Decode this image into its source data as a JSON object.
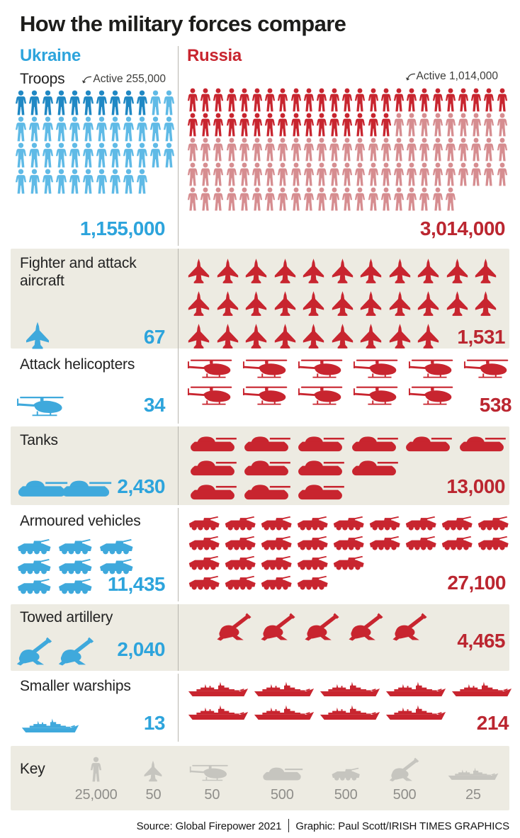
{
  "title": "How the military forces compare",
  "columns": {
    "ukraine": {
      "label": "Ukraine"
    },
    "russia": {
      "label": "Russia"
    }
  },
  "colors": {
    "tx": "#1d1d1b",
    "uk": "#2da4dc",
    "uki": "#3fa9dc",
    "ukd": "#1f88c4",
    "ukl": "#5fbae6",
    "ru": "#c8252f",
    "rui": "#c8252f",
    "ruv": "#bb2630",
    "rul": "#d68d90",
    "beige": "#edebe2",
    "keyic": "#c6c5bf",
    "keytx": "#8f8e8a",
    "div": "#b8b6ae",
    "an": "#3c3c3a"
  },
  "troops": {
    "label": "Troops",
    "ukraine": {
      "annotation": "Active 255,000",
      "rows": [
        {
          "dark": 10,
          "light": 2
        },
        {
          "dark": 0,
          "light": 12
        },
        {
          "dark": 0,
          "light": 12
        },
        {
          "dark": 0,
          "light": 10
        }
      ],
      "total": "1,155,000"
    },
    "russia": {
      "annotation": "Active 1,014,000",
      "rows": [
        {
          "dark": 25,
          "light": 0
        },
        {
          "dark": 16,
          "light": 9
        },
        {
          "dark": 0,
          "light": 25
        },
        {
          "dark": 0,
          "light": 25
        },
        {
          "dark": 0,
          "light": 21
        }
      ],
      "total": "3,014,000"
    }
  },
  "sections": [
    {
      "id": "aircraft",
      "label": "Fighter and attack aircraft",
      "icon": "jet",
      "ukraine": {
        "rows": [
          1
        ],
        "value": "67"
      },
      "russia": {
        "rows": [
          11,
          11,
          9
        ],
        "value": "1,531"
      }
    },
    {
      "id": "helicopters",
      "label": "Attack helicopters",
      "icon": "helicopter",
      "ukraine": {
        "rows": [
          1
        ],
        "value": "34"
      },
      "russia": {
        "rows": [
          6,
          5
        ],
        "value": "538"
      }
    },
    {
      "id": "tanks",
      "label": "Tanks",
      "icon": "tank",
      "ukraine": {
        "rows": [
          2
        ],
        "value": "2,430"
      },
      "russia": {
        "rows": [
          6,
          4,
          3
        ],
        "value": "13,000"
      }
    },
    {
      "id": "armoured",
      "label": "Armoured vehicles",
      "icon": "apc",
      "ukraine": {
        "rows": [
          3,
          3,
          2
        ],
        "value": "11,435"
      },
      "russia": {
        "rows": [
          9,
          9,
          5,
          4
        ],
        "value": "27,100"
      }
    },
    {
      "id": "artillery",
      "label": "Towed artillery",
      "icon": "artillery",
      "ukraine": {
        "rows": [
          2
        ],
        "value": "2,040"
      },
      "russia": {
        "rows": [
          5
        ],
        "value": "4,465"
      }
    },
    {
      "id": "warships",
      "label": "Smaller warships",
      "icon": "warship",
      "ukraine": {
        "rows": [
          1
        ],
        "value": "13"
      },
      "russia": {
        "rows": [
          5,
          4
        ],
        "value": "214"
      }
    }
  ],
  "key": {
    "label": "Key",
    "items": [
      {
        "icon": "person",
        "value": "25,000"
      },
      {
        "icon": "jet",
        "value": "50"
      },
      {
        "icon": "helicopter",
        "value": "50"
      },
      {
        "icon": "tank",
        "value": "500"
      },
      {
        "icon": "apc",
        "value": "500"
      },
      {
        "icon": "artillery",
        "value": "500"
      },
      {
        "icon": "warship",
        "value": "25"
      }
    ]
  },
  "footer": {
    "source": "Source: Global Firepower 2021",
    "credit": "Graphic: Paul Scott/IRISH TIMES GRAPHICS"
  },
  "chart_data": {
    "type": "table",
    "style": "pictogram-comparison",
    "title": "How the military forces compare",
    "categories": [
      "Total troops",
      "Active troops",
      "Fighter and attack aircraft",
      "Attack helicopters",
      "Tanks",
      "Armoured vehicles",
      "Towed artillery",
      "Smaller warships"
    ],
    "series": [
      {
        "name": "Ukraine",
        "values": [
          1155000,
          255000,
          67,
          34,
          2430,
          11435,
          2040,
          13
        ]
      },
      {
        "name": "Russia",
        "values": [
          3014000,
          1014000,
          1531,
          538,
          13000,
          27100,
          4465,
          214
        ]
      }
    ],
    "icon_unit_key": {
      "troops": 25000,
      "aircraft": 50,
      "helicopters": 50,
      "tanks": 500,
      "armoured_vehicles": 500,
      "towed_artillery": 500,
      "warships": 25
    },
    "legend_position": "bottom",
    "source": "Global Firepower 2021"
  }
}
